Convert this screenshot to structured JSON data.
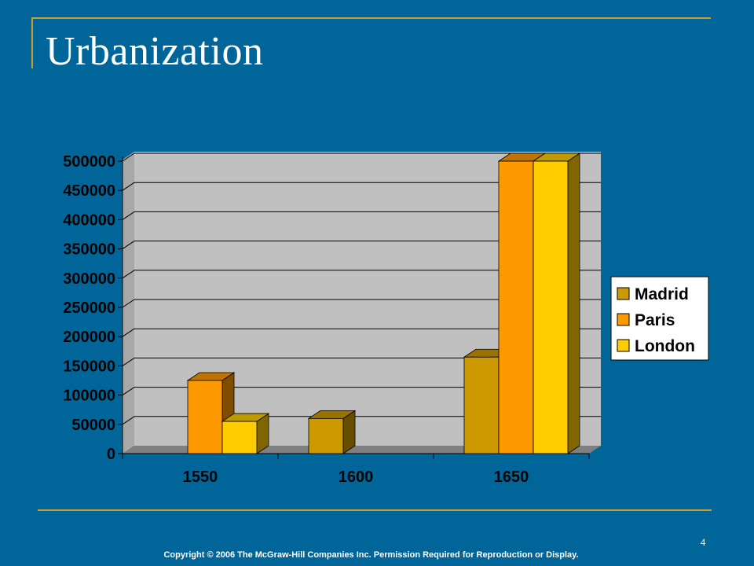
{
  "slide": {
    "title": "Urbanization",
    "page_number": "4",
    "copyright": "Copyright © 2006 The McGraw-Hill Companies Inc. Permission Required for Reproduction or Display."
  },
  "colors": {
    "background": "#006699",
    "accent_rule": "#c8a033",
    "plot_wall": "#c0c0c0",
    "plot_floor": "#808080"
  },
  "chart_data": {
    "type": "bar",
    "title": "",
    "xlabel": "",
    "ylabel": "",
    "categories": [
      "1550",
      "1600",
      "1650"
    ],
    "ylim": [
      0,
      500000
    ],
    "yticks": [
      "0",
      "50000",
      "100000",
      "150000",
      "200000",
      "250000",
      "300000",
      "350000",
      "400000",
      "450000",
      "500000"
    ],
    "grid": true,
    "legend_position": "right",
    "series": [
      {
        "name": "Madrid",
        "color": "#cc9900",
        "values": [
          null,
          60000,
          165000
        ]
      },
      {
        "name": "Paris",
        "color": "#ff9900",
        "values": [
          125000,
          null,
          500000
        ]
      },
      {
        "name": "London",
        "color": "#ffcc00",
        "values": [
          55000,
          null,
          500000
        ]
      }
    ]
  }
}
